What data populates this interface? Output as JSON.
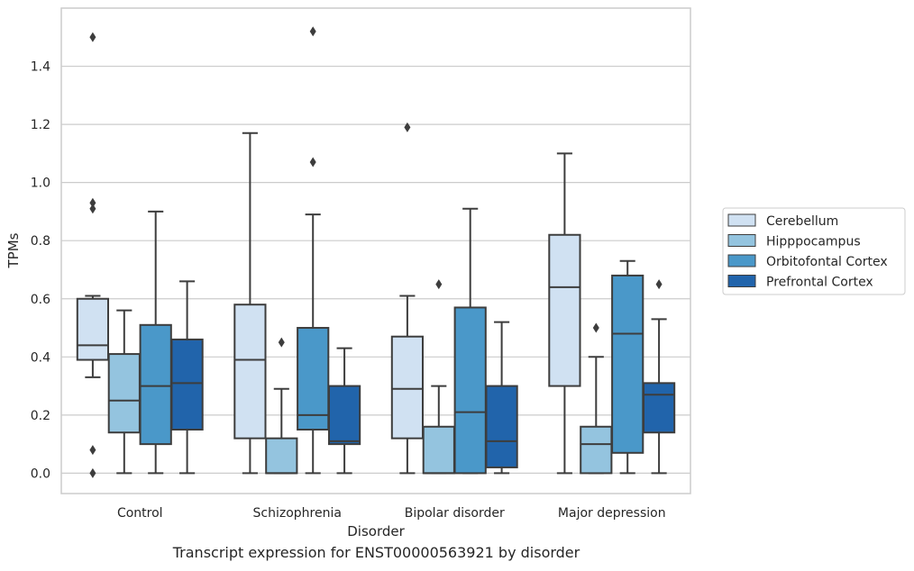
{
  "chart_data": {
    "type": "boxplot",
    "title": "",
    "caption": "Transcript expression for ENST00000563921 by disorder",
    "xlabel": "Disorder",
    "ylabel": "TPMs",
    "ylim": [
      -0.07,
      1.6
    ],
    "yticks": [
      0.0,
      0.2,
      0.4,
      0.6,
      0.8,
      1.0,
      1.2,
      1.4
    ],
    "ytick_labels": [
      "0.0",
      "0.2",
      "0.4",
      "0.6",
      "0.8",
      "1.0",
      "1.2",
      "1.4"
    ],
    "grid": "horizontal",
    "legend_position": "right",
    "categories": [
      "Control",
      "Schizophrenia",
      "Bipolar disorder",
      "Major depression"
    ],
    "series": [
      {
        "name": "Cerebellum",
        "color": "#d0e1f2",
        "boxes": [
          {
            "whislo": 0.33,
            "q1": 0.39,
            "med": 0.44,
            "q3": 0.6,
            "whishi": 0.61,
            "fliers": [
              1.5,
              0.93,
              0.91,
              0.08,
              0.0
            ]
          },
          {
            "whislo": 0.0,
            "q1": 0.12,
            "med": 0.39,
            "q3": 0.58,
            "whishi": 1.17,
            "fliers": []
          },
          {
            "whislo": 0.0,
            "q1": 0.12,
            "med": 0.29,
            "q3": 0.47,
            "whishi": 0.61,
            "fliers": [
              1.19
            ]
          },
          {
            "whislo": 0.0,
            "q1": 0.3,
            "med": 0.64,
            "q3": 0.82,
            "whishi": 1.1,
            "fliers": []
          }
        ]
      },
      {
        "name": "Hipppocampus",
        "color": "#94c4df",
        "boxes": [
          {
            "whislo": 0.0,
            "q1": 0.14,
            "med": 0.25,
            "q3": 0.41,
            "whishi": 0.56,
            "fliers": []
          },
          {
            "whislo": 0.0,
            "q1": 0.0,
            "med": 0.0,
            "q3": 0.12,
            "whishi": 0.29,
            "fliers": [
              0.45
            ]
          },
          {
            "whislo": 0.0,
            "q1": 0.0,
            "med": 0.0,
            "q3": 0.16,
            "whishi": 0.3,
            "fliers": [
              0.65
            ]
          },
          {
            "whislo": 0.0,
            "q1": 0.0,
            "med": 0.1,
            "q3": 0.16,
            "whishi": 0.4,
            "fliers": [
              0.5
            ]
          }
        ]
      },
      {
        "name": "Orbitofontal Cortex",
        "color": "#4a98c9",
        "boxes": [
          {
            "whislo": 0.0,
            "q1": 0.1,
            "med": 0.3,
            "q3": 0.51,
            "whishi": 0.9,
            "fliers": []
          },
          {
            "whislo": 0.0,
            "q1": 0.15,
            "med": 0.2,
            "q3": 0.5,
            "whishi": 0.89,
            "fliers": [
              1.52,
              1.07
            ]
          },
          {
            "whislo": 0.0,
            "q1": 0.0,
            "med": 0.21,
            "q3": 0.57,
            "whishi": 0.91,
            "fliers": []
          },
          {
            "whislo": 0.0,
            "q1": 0.07,
            "med": 0.48,
            "q3": 0.68,
            "whishi": 0.73,
            "fliers": []
          }
        ]
      },
      {
        "name": "Prefrontal Cortex",
        "color": "#2164ab",
        "boxes": [
          {
            "whislo": 0.0,
            "q1": 0.15,
            "med": 0.31,
            "q3": 0.46,
            "whishi": 0.66,
            "fliers": []
          },
          {
            "whislo": 0.0,
            "q1": 0.1,
            "med": 0.11,
            "q3": 0.3,
            "whishi": 0.43,
            "fliers": []
          },
          {
            "whislo": 0.0,
            "q1": 0.02,
            "med": 0.11,
            "q3": 0.3,
            "whishi": 0.52,
            "fliers": []
          },
          {
            "whislo": 0.0,
            "q1": 0.14,
            "med": 0.27,
            "q3": 0.31,
            "whishi": 0.53,
            "fliers": [
              0.65
            ]
          }
        ]
      }
    ]
  }
}
